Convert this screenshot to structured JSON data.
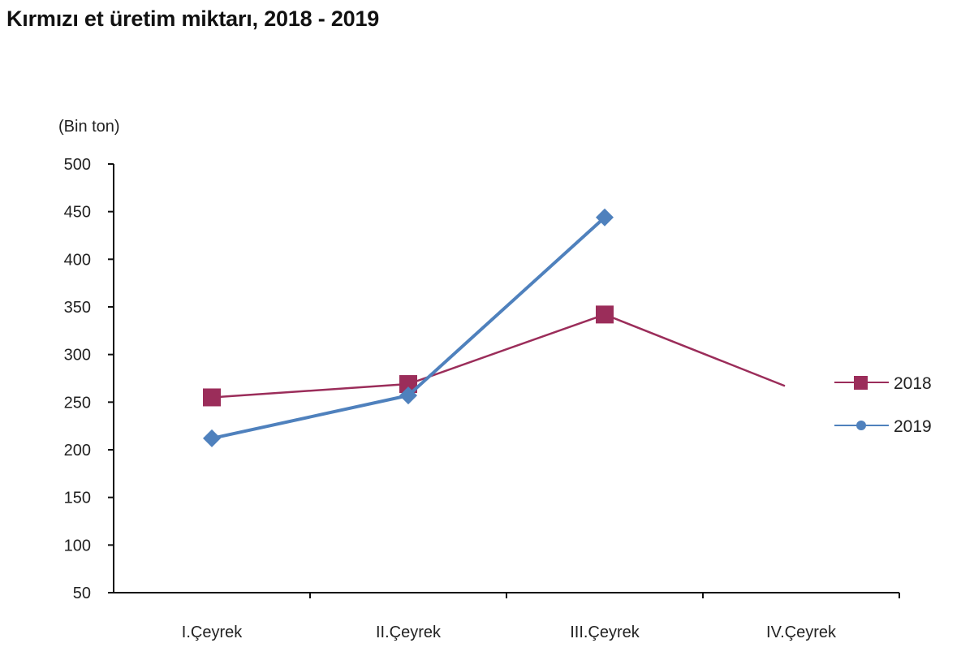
{
  "title": "Kırmızı et üretim miktarı, 2018 - 2019",
  "colors": {
    "s2018": "#9b2d5a",
    "s2019": "#4f81bd",
    "axis": "#111111"
  },
  "chart_data": {
    "type": "line",
    "title": "Kırmızı et üretim miktarı, 2018 - 2019",
    "xlabel": "",
    "ylabel": "(Bin ton)",
    "ylim": [
      50,
      500
    ],
    "yticks": [
      50,
      100,
      150,
      200,
      250,
      300,
      350,
      400,
      450,
      500
    ],
    "categories": [
      "I.Çeyrek",
      "II.Çeyrek",
      "III.Çeyrek",
      "IV.Çeyrek"
    ],
    "series": [
      {
        "name": "2018",
        "marker": "square",
        "color": "#9b2d5a",
        "values": [
          255,
          269,
          342,
          267
        ]
      },
      {
        "name": "2019",
        "marker": "diamond",
        "color": "#4f81bd",
        "values": [
          212,
          257,
          444,
          null
        ]
      }
    ],
    "grid": false,
    "legend_position": "right"
  }
}
